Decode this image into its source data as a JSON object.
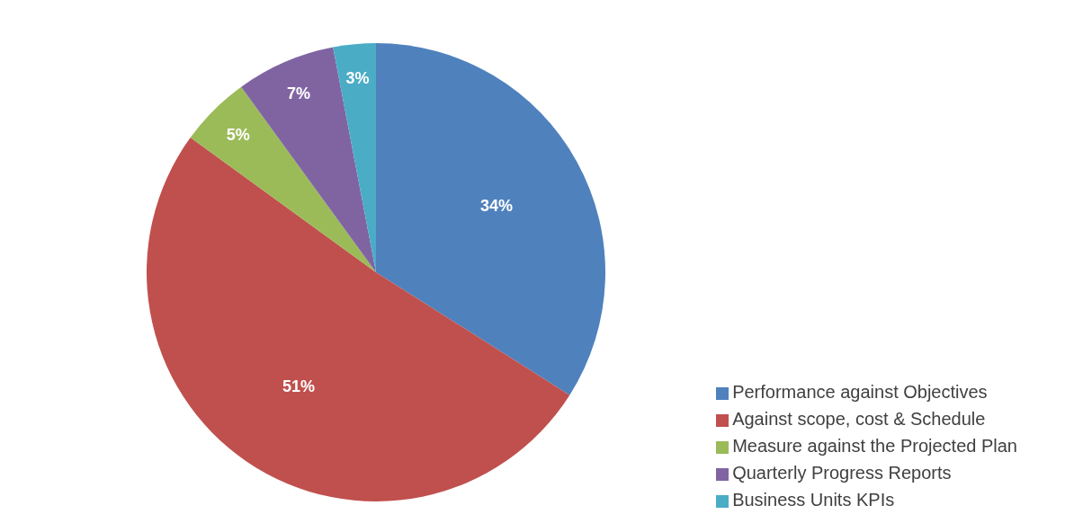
{
  "chart_data": {
    "type": "pie",
    "categories": [
      "Performance against Objectives",
      "Against scope, cost & Schedule",
      "Measure against the Projected Plan",
      "Quarterly Progress Reports",
      "Business Units KPIs"
    ],
    "values": [
      34,
      51,
      5,
      7,
      3
    ],
    "colors": [
      "#4f81bd",
      "#c0504d",
      "#9bbb59",
      "#8064a2",
      "#4bacc6"
    ],
    "value_labels": [
      "34%",
      "51%",
      "5%",
      "7%",
      "3%"
    ],
    "legend": "bottom right"
  }
}
